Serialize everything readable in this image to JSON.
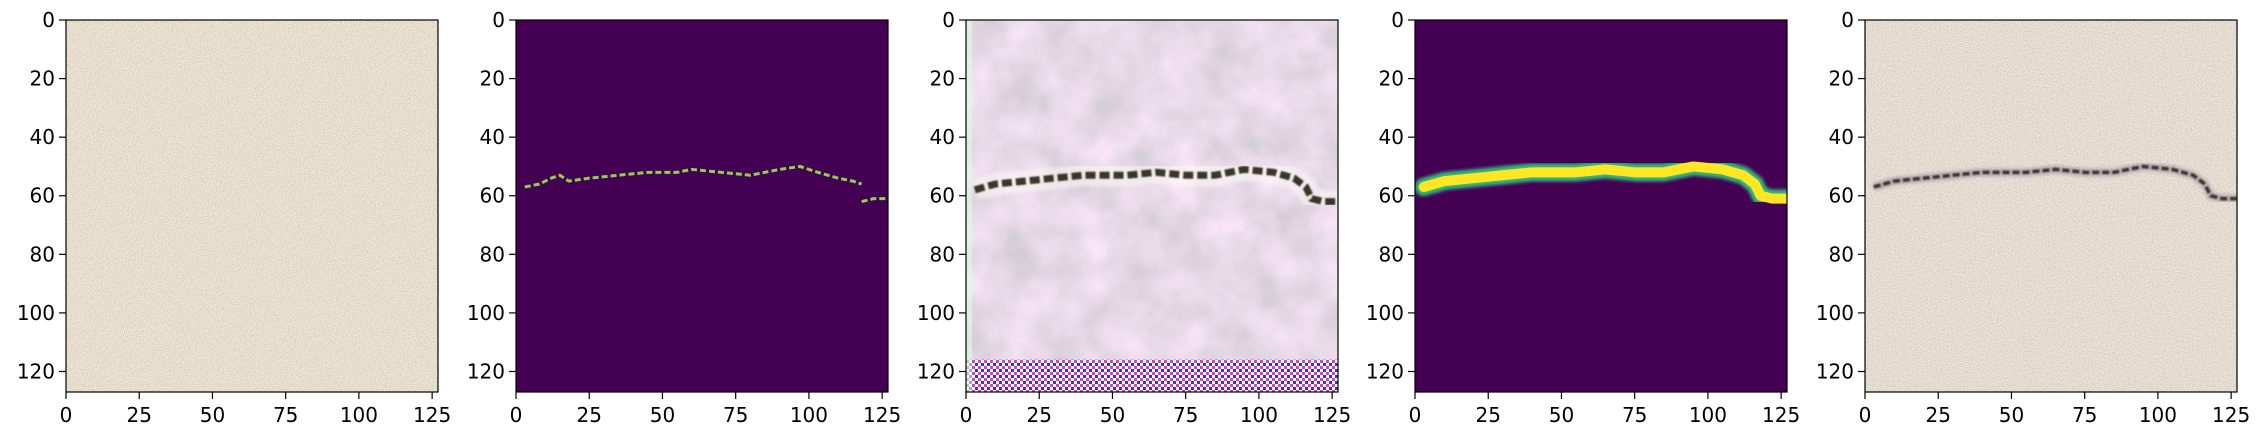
{
  "chart_data": [
    {
      "type": "image",
      "content": "raw concrete surface texture photo",
      "xlim": [
        0,
        127
      ],
      "ylim": [
        127,
        0
      ],
      "x_ticks": [
        "0",
        "25",
        "50",
        "75",
        "100",
        "125"
      ],
      "y_ticks": [
        "0",
        "20",
        "40",
        "60",
        "80",
        "100",
        "120"
      ]
    },
    {
      "type": "heatmap",
      "content": "thin binary crack mask (viridis colormap)",
      "xlim": [
        0,
        127
      ],
      "ylim": [
        127,
        0
      ],
      "x_ticks": [
        "0",
        "25",
        "50",
        "75",
        "100",
        "125"
      ],
      "y_ticks": [
        "0",
        "20",
        "40",
        "60",
        "80",
        "100",
        "120"
      ],
      "crack_path": [
        [
          3,
          57
        ],
        [
          8,
          56
        ],
        [
          12,
          54
        ],
        [
          15,
          53
        ],
        [
          18,
          55
        ],
        [
          25,
          54
        ],
        [
          35,
          53
        ],
        [
          45,
          52
        ],
        [
          55,
          52
        ],
        [
          60,
          51
        ],
        [
          70,
          52
        ],
        [
          80,
          53
        ],
        [
          90,
          51
        ],
        [
          97,
          50
        ],
        [
          103,
          52
        ],
        [
          110,
          54
        ],
        [
          115,
          55
        ],
        [
          118,
          56
        ]
      ],
      "crack_tail": [
        [
          118,
          62
        ],
        [
          122,
          61
        ],
        [
          127,
          61
        ]
      ]
    },
    {
      "type": "image",
      "content": "generated crack texture with checkerboard artifacts",
      "xlim": [
        0,
        127
      ],
      "ylim": [
        127,
        0
      ],
      "x_ticks": [
        "0",
        "25",
        "50",
        "75",
        "100",
        "125"
      ],
      "y_ticks": [
        "0",
        "20",
        "40",
        "60",
        "80",
        "100",
        "120"
      ]
    },
    {
      "type": "heatmap",
      "content": "dilated crack mask (viridis colormap)",
      "xlim": [
        0,
        127
      ],
      "ylim": [
        127,
        0
      ],
      "x_ticks": [
        "0",
        "25",
        "50",
        "75",
        "100",
        "125"
      ],
      "y_ticks": [
        "0",
        "20",
        "40",
        "60",
        "80",
        "100",
        "120"
      ],
      "crack_path": [
        [
          3,
          57
        ],
        [
          10,
          55
        ],
        [
          20,
          54
        ],
        [
          30,
          53
        ],
        [
          40,
          52
        ],
        [
          55,
          52
        ],
        [
          65,
          51
        ],
        [
          75,
          52
        ],
        [
          85,
          52
        ],
        [
          95,
          50
        ],
        [
          105,
          51
        ],
        [
          112,
          53
        ],
        [
          116,
          56
        ],
        [
          118,
          60
        ],
        [
          122,
          61
        ],
        [
          127,
          61
        ]
      ]
    },
    {
      "type": "image",
      "content": "concrete surface with blended synthetic crack",
      "xlim": [
        0,
        127
      ],
      "ylim": [
        127,
        0
      ],
      "x_ticks": [
        "0",
        "25",
        "50",
        "75",
        "100",
        "125"
      ],
      "y_ticks": [
        "0",
        "20",
        "40",
        "60",
        "80",
        "100",
        "120"
      ]
    }
  ],
  "colors": {
    "viridis_background": "#440154",
    "viridis_crack_core": "#fde725",
    "viridis_crack_edge": "#35b779",
    "thin_crack": "#8fd14f",
    "concrete": "#c9bba6",
    "generated_base": "#d6c3d3",
    "crack_dark": "#3a3528"
  }
}
